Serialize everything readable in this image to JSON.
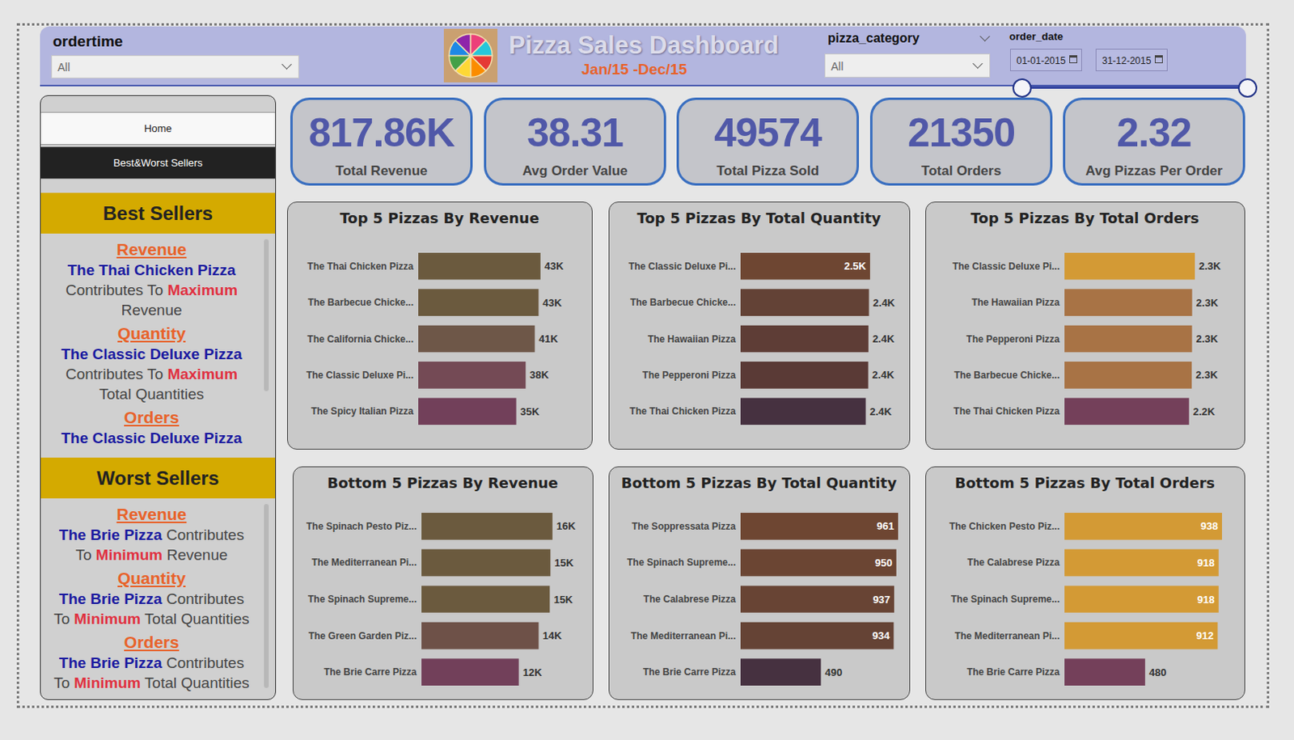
{
  "header": {
    "filter_left_label": "ordertime",
    "filter_left_value": "All",
    "title": "Pizza Sales Dashboard",
    "subtitle": "Jan/15 -Dec/15",
    "filter_mid_label": "pizza_category",
    "filter_mid_value": "All",
    "date_label": "order_date",
    "date_from": "01-01-2015",
    "date_to": "31-12-2015"
  },
  "kpis": [
    {
      "value": "817.86K",
      "label": "Total Revenue"
    },
    {
      "value": "38.31",
      "label": "Avg Order Value"
    },
    {
      "value": "49574",
      "label": "Total Pizza Sold"
    },
    {
      "value": "21350",
      "label": "Total Orders"
    },
    {
      "value": "2.32",
      "label": "Avg Pizzas Per Order"
    }
  ],
  "sidebar": {
    "nav": [
      "Home",
      "Best&Worst Sellers"
    ],
    "sections": [
      {
        "title": "Best Sellers",
        "items": [
          {
            "heading": "Revenue",
            "text": [
              {
                "t": "The Thai Chicken Pizza",
                "style": "name"
              },
              {
                "t": " Contributes To ",
                "style": "plain"
              },
              {
                "t": "Maximum",
                "style": "key"
              },
              {
                "t": " Revenue",
                "style": "plain"
              }
            ]
          },
          {
            "heading": "Quantity",
            "text": [
              {
                "t": "The Classic Deluxe Pizza",
                "style": "name"
              },
              {
                "t": " Contributes To ",
                "style": "plain"
              },
              {
                "t": "Maximum",
                "style": "key"
              },
              {
                "t": " Total Quantities",
                "style": "plain"
              }
            ]
          },
          {
            "heading": "Orders",
            "text": [
              {
                "t": "The Classic Deluxe Pizza",
                "style": "name"
              }
            ]
          }
        ]
      },
      {
        "title": "Worst Sellers",
        "items": [
          {
            "heading": "Revenue",
            "text": [
              {
                "t": "The Brie Pizza",
                "style": "name"
              },
              {
                "t": " Contributes To ",
                "style": "plain"
              },
              {
                "t": "Minimum",
                "style": "key"
              },
              {
                "t": " Revenue",
                "style": "plain"
              }
            ]
          },
          {
            "heading": "Quantity",
            "text": [
              {
                "t": "The Brie Pizza",
                "style": "name"
              },
              {
                "t": " Contributes To ",
                "style": "plain"
              },
              {
                "t": "Minimum",
                "style": "key"
              },
              {
                "t": " Total Quantities",
                "style": "plain"
              }
            ]
          },
          {
            "heading": "Orders",
            "text": [
              {
                "t": "The Brie Pizza",
                "style": "name"
              },
              {
                "t": " Contributes To ",
                "style": "plain"
              },
              {
                "t": "Minimum",
                "style": "key"
              },
              {
                "t": " Total Quantities",
                "style": "plain"
              }
            ]
          }
        ]
      }
    ]
  },
  "chart_data": [
    {
      "type": "bar",
      "title": "Top 5 Pizzas By Revenue",
      "orientation": "horizontal",
      "categories": [
        "The Thai Chicken Pizza",
        "The Barbecue Chicke...",
        "The California Chicke...",
        "The Classic Deluxe Pi...",
        "The Spicy Italian Pizza"
      ],
      "values": [
        43434,
        42768,
        41410,
        38180,
        34831
      ],
      "value_labels": [
        "43K",
        "43K",
        "41K",
        "38K",
        "35K"
      ],
      "colors": [
        "#6b5a3e",
        "#6b5a3e",
        "#6e5748",
        "#744a55",
        "#72405a"
      ],
      "xlim": [
        0,
        56000
      ],
      "data_labels": true,
      "tick_labels": "y",
      "grid": false
    },
    {
      "type": "bar",
      "title": "Top 5 Pizzas By Total Quantity",
      "orientation": "horizontal",
      "categories": [
        "The Classic Deluxe Pi...",
        "The Barbecue Chicke...",
        "The Hawaiian Pizza",
        "The Pepperoni Pizza",
        "The Thai Chicken Pizza"
      ],
      "values": [
        2453,
        2432,
        2422,
        2418,
        2371
      ],
      "value_labels": [
        "2.5K",
        "2.4K",
        "2.4K",
        "2.4K",
        "2.4K"
      ],
      "colors": [
        "#6e4632",
        "#634236",
        "#5e3d36",
        "#5a3a36",
        "#463140"
      ],
      "xlim": [
        0,
        3060
      ],
      "data_labels": true,
      "tick_labels": "y",
      "grid": false
    },
    {
      "type": "bar",
      "title": "Top 5 Pizzas By Total Orders",
      "orientation": "horizontal",
      "categories": [
        "The Classic Deluxe Pi...",
        "The Hawaiian Pizza",
        "The Pepperoni Pizza",
        "The Barbecue Chicke...",
        "The Thai Chicken Pizza"
      ],
      "values": [
        2329,
        2280,
        2278,
        2273,
        2225
      ],
      "value_labels": [
        "2.3K",
        "2.3K",
        "2.3K",
        "2.3K",
        "2.2K"
      ],
      "colors": [
        "#d39a35",
        "#a87345",
        "#a87345",
        "#a87345",
        "#74405a"
      ],
      "xlim": [
        0,
        3000
      ],
      "data_labels": true,
      "tick_labels": "y",
      "grid": false
    },
    {
      "type": "bar",
      "title": "Bottom 5 Pizzas By Revenue",
      "orientation": "horizontal",
      "categories": [
        "The Spinach Pesto Piz...",
        "The Mediterranean Pi...",
        "The Spinach Supreme...",
        "The Green Garden Piz...",
        "The Brie Carre Pizza"
      ],
      "values": [
        15596,
        15360,
        15277,
        13956,
        11588
      ],
      "value_labels": [
        "16K",
        "15K",
        "15K",
        "14K",
        "12K"
      ],
      "colors": [
        "#6b5a3e",
        "#6b5a3e",
        "#6b5a3e",
        "#6e5148",
        "#72405a"
      ],
      "xlim": [
        0,
        20000
      ],
      "data_labels": true,
      "tick_labels": "y",
      "grid": false
    },
    {
      "type": "bar",
      "title": "Bottom 5 Pizzas By Total Quantity",
      "orientation": "horizontal",
      "categories": [
        "The Soppressata Pizza",
        "The Spinach Supreme...",
        "The Calabrese Pizza",
        "The Mediterranean Pi...",
        "The Brie Carre Pizza"
      ],
      "values": [
        961,
        950,
        937,
        934,
        490
      ],
      "colors": [
        "#6e4632",
        "#6b4533",
        "#684434",
        "#654335",
        "#463140"
      ],
      "xlim": [
        0,
        1000
      ],
      "data_labels": true,
      "tick_labels": "y",
      "grid": false
    },
    {
      "type": "bar",
      "title": "Bottom 5 Pizzas By Total Orders",
      "orientation": "horizontal",
      "categories": [
        "The Chicken Pesto Piz...",
        "The Calabrese Pizza",
        "The Spinach Supreme...",
        "The Mediterranean Pi...",
        "The Brie Carre Pizza"
      ],
      "values": [
        938,
        918,
        918,
        912,
        480
      ],
      "colors": [
        "#d39a35",
        "#d39a35",
        "#d39a35",
        "#d39a35",
        "#74405a"
      ],
      "xlim": [
        0,
        1000
      ],
      "data_labels": true,
      "tick_labels": "y",
      "grid": false
    }
  ]
}
